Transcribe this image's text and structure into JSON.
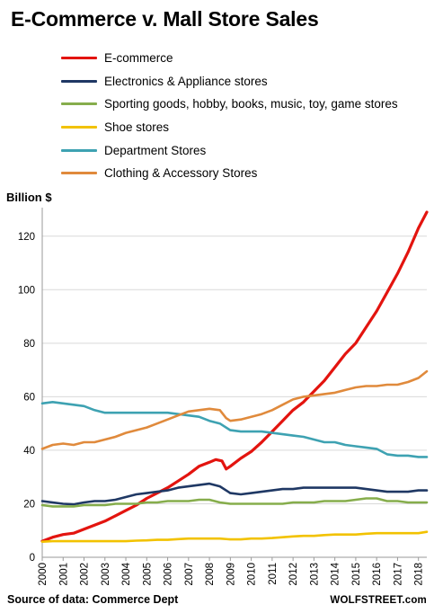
{
  "title": "E-Commerce v. Mall Store Sales",
  "source": "Source of data: Commerce Dept",
  "brand": "WOLFSTREET.com",
  "chart_data": {
    "type": "line",
    "ylabel": "Billion $",
    "xlabel": "",
    "ylim": [
      0,
      130
    ],
    "xlim": [
      2000,
      2018.4
    ],
    "yticks": [
      "0",
      "20",
      "40",
      "60",
      "80",
      "100",
      "120"
    ],
    "xticks": [
      "2000",
      "2001",
      "2002",
      "2003",
      "2004",
      "2005",
      "2006",
      "2007",
      "2008",
      "2009",
      "2010",
      "2011",
      "2012",
      "2013",
      "2014",
      "2015",
      "2016",
      "2017",
      "2018"
    ],
    "grid": "horizontal",
    "legend_position": "top-left",
    "series": [
      {
        "name": "E-commerce",
        "color": "#e3140f",
        "points": [
          [
            2000,
            6
          ],
          [
            2000.5,
            7.5
          ],
          [
            2001,
            8.5
          ],
          [
            2001.5,
            9
          ],
          [
            2002,
            10.5
          ],
          [
            2002.5,
            12
          ],
          [
            2003,
            13.5
          ],
          [
            2003.5,
            15.5
          ],
          [
            2004,
            17.5
          ],
          [
            2004.5,
            19.5
          ],
          [
            2005,
            22
          ],
          [
            2005.5,
            24
          ],
          [
            2006,
            26
          ],
          [
            2006.5,
            28.5
          ],
          [
            2007,
            31
          ],
          [
            2007.5,
            34
          ],
          [
            2008,
            35.5
          ],
          [
            2008.3,
            36.5
          ],
          [
            2008.6,
            36
          ],
          [
            2008.8,
            33
          ],
          [
            2009,
            34
          ],
          [
            2009.5,
            37
          ],
          [
            2010,
            39.5
          ],
          [
            2010.5,
            43
          ],
          [
            2011,
            47
          ],
          [
            2011.5,
            51
          ],
          [
            2012,
            55
          ],
          [
            2012.5,
            58
          ],
          [
            2013,
            62
          ],
          [
            2013.5,
            66
          ],
          [
            2014,
            71
          ],
          [
            2014.5,
            76
          ],
          [
            2015,
            80
          ],
          [
            2015.5,
            86
          ],
          [
            2016,
            92
          ],
          [
            2016.5,
            99
          ],
          [
            2017,
            106
          ],
          [
            2017.5,
            114
          ],
          [
            2018,
            123
          ],
          [
            2018.4,
            129
          ]
        ]
      },
      {
        "name": "Electronics & Appliance stores",
        "color": "#1f3864",
        "points": [
          [
            2000,
            21
          ],
          [
            2000.5,
            20.5
          ],
          [
            2001,
            20
          ],
          [
            2001.5,
            19.8
          ],
          [
            2002,
            20.5
          ],
          [
            2002.5,
            21
          ],
          [
            2003,
            21
          ],
          [
            2003.5,
            21.5
          ],
          [
            2004,
            22.5
          ],
          [
            2004.5,
            23.5
          ],
          [
            2005,
            24
          ],
          [
            2005.5,
            24.5
          ],
          [
            2006,
            25
          ],
          [
            2006.5,
            26
          ],
          [
            2007,
            26.5
          ],
          [
            2007.5,
            27
          ],
          [
            2008,
            27.5
          ],
          [
            2008.5,
            26.5
          ],
          [
            2009,
            24
          ],
          [
            2009.5,
            23.5
          ],
          [
            2010,
            24
          ],
          [
            2010.5,
            24.5
          ],
          [
            2011,
            25
          ],
          [
            2011.5,
            25.5
          ],
          [
            2012,
            25.5
          ],
          [
            2012.5,
            26
          ],
          [
            2013,
            26
          ],
          [
            2013.5,
            26
          ],
          [
            2014,
            26
          ],
          [
            2014.5,
            26
          ],
          [
            2015,
            26
          ],
          [
            2015.5,
            25.5
          ],
          [
            2016,
            25
          ],
          [
            2016.5,
            24.5
          ],
          [
            2017,
            24.5
          ],
          [
            2017.5,
            24.5
          ],
          [
            2018,
            25
          ],
          [
            2018.4,
            25
          ]
        ]
      },
      {
        "name": "Sporting goods, hobby, books, music, toy, game stores",
        "color": "#86ad4c",
        "points": [
          [
            2000,
            19.5
          ],
          [
            2000.5,
            19
          ],
          [
            2001,
            19
          ],
          [
            2001.5,
            19
          ],
          [
            2002,
            19.5
          ],
          [
            2002.5,
            19.5
          ],
          [
            2003,
            19.5
          ],
          [
            2003.5,
            20
          ],
          [
            2004,
            20
          ],
          [
            2004.5,
            20
          ],
          [
            2005,
            20.5
          ],
          [
            2005.5,
            20.5
          ],
          [
            2006,
            21
          ],
          [
            2006.5,
            21
          ],
          [
            2007,
            21
          ],
          [
            2007.5,
            21.5
          ],
          [
            2008,
            21.5
          ],
          [
            2008.5,
            20.5
          ],
          [
            2009,
            20
          ],
          [
            2009.5,
            20
          ],
          [
            2010,
            20
          ],
          [
            2010.5,
            20
          ],
          [
            2011,
            20
          ],
          [
            2011.5,
            20
          ],
          [
            2012,
            20.5
          ],
          [
            2012.5,
            20.5
          ],
          [
            2013,
            20.5
          ],
          [
            2013.5,
            21
          ],
          [
            2014,
            21
          ],
          [
            2014.5,
            21
          ],
          [
            2015,
            21.5
          ],
          [
            2015.5,
            22
          ],
          [
            2016,
            22
          ],
          [
            2016.5,
            21
          ],
          [
            2017,
            21
          ],
          [
            2017.5,
            20.5
          ],
          [
            2018,
            20.5
          ],
          [
            2018.4,
            20.5
          ]
        ]
      },
      {
        "name": "Shoe stores",
        "color": "#f2c200",
        "points": [
          [
            2000,
            5.8
          ],
          [
            2000.5,
            6
          ],
          [
            2001,
            6
          ],
          [
            2001.5,
            6
          ],
          [
            2002,
            6
          ],
          [
            2002.5,
            6
          ],
          [
            2003,
            6
          ],
          [
            2003.5,
            6
          ],
          [
            2004,
            6
          ],
          [
            2004.5,
            6.2
          ],
          [
            2005,
            6.3
          ],
          [
            2005.5,
            6.5
          ],
          [
            2006,
            6.5
          ],
          [
            2006.5,
            6.8
          ],
          [
            2007,
            7
          ],
          [
            2007.5,
            7
          ],
          [
            2008,
            7
          ],
          [
            2008.5,
            7
          ],
          [
            2009,
            6.7
          ],
          [
            2009.5,
            6.7
          ],
          [
            2010,
            7
          ],
          [
            2010.5,
            7
          ],
          [
            2011,
            7.2
          ],
          [
            2011.5,
            7.5
          ],
          [
            2012,
            7.8
          ],
          [
            2012.5,
            8
          ],
          [
            2013,
            8
          ],
          [
            2013.5,
            8.3
          ],
          [
            2014,
            8.5
          ],
          [
            2014.5,
            8.5
          ],
          [
            2015,
            8.5
          ],
          [
            2015.5,
            8.8
          ],
          [
            2016,
            9
          ],
          [
            2016.5,
            9
          ],
          [
            2017,
            9
          ],
          [
            2017.5,
            9
          ],
          [
            2018,
            9
          ],
          [
            2018.4,
            9.5
          ]
        ]
      },
      {
        "name": "Department Stores",
        "color": "#3ea2b2",
        "points": [
          [
            2000,
            57.5
          ],
          [
            2000.5,
            58
          ],
          [
            2001,
            57.5
          ],
          [
            2001.5,
            57
          ],
          [
            2002,
            56.5
          ],
          [
            2002.5,
            55
          ],
          [
            2003,
            54
          ],
          [
            2003.5,
            54
          ],
          [
            2004,
            54
          ],
          [
            2004.5,
            54
          ],
          [
            2005,
            54
          ],
          [
            2005.5,
            54
          ],
          [
            2006,
            54
          ],
          [
            2006.5,
            53.5
          ],
          [
            2007,
            53
          ],
          [
            2007.5,
            52.5
          ],
          [
            2008,
            51
          ],
          [
            2008.5,
            50
          ],
          [
            2009,
            47.5
          ],
          [
            2009.5,
            47
          ],
          [
            2010,
            47
          ],
          [
            2010.5,
            47
          ],
          [
            2011,
            46.5
          ],
          [
            2011.5,
            46
          ],
          [
            2012,
            45.5
          ],
          [
            2012.5,
            45
          ],
          [
            2013,
            44
          ],
          [
            2013.5,
            43
          ],
          [
            2014,
            43
          ],
          [
            2014.5,
            42
          ],
          [
            2015,
            41.5
          ],
          [
            2015.5,
            41
          ],
          [
            2016,
            40.5
          ],
          [
            2016.5,
            38.5
          ],
          [
            2017,
            38
          ],
          [
            2017.5,
            38
          ],
          [
            2018,
            37.5
          ],
          [
            2018.4,
            37.5
          ]
        ]
      },
      {
        "name": "Clothing & Accessory Stores",
        "color": "#e08a3c",
        "points": [
          [
            2000,
            40.5
          ],
          [
            2000.5,
            42
          ],
          [
            2001,
            42.5
          ],
          [
            2001.5,
            42
          ],
          [
            2002,
            43
          ],
          [
            2002.5,
            43
          ],
          [
            2003,
            44
          ],
          [
            2003.5,
            45
          ],
          [
            2004,
            46.5
          ],
          [
            2004.5,
            47.5
          ],
          [
            2005,
            48.5
          ],
          [
            2005.5,
            50
          ],
          [
            2006,
            51.5
          ],
          [
            2006.5,
            53
          ],
          [
            2007,
            54.5
          ],
          [
            2007.5,
            55
          ],
          [
            2008,
            55.5
          ],
          [
            2008.5,
            55
          ],
          [
            2008.8,
            52
          ],
          [
            2009,
            51
          ],
          [
            2009.5,
            51.5
          ],
          [
            2010,
            52.5
          ],
          [
            2010.5,
            53.5
          ],
          [
            2011,
            55
          ],
          [
            2011.5,
            57
          ],
          [
            2012,
            59
          ],
          [
            2012.5,
            60
          ],
          [
            2013,
            60.5
          ],
          [
            2013.5,
            61
          ],
          [
            2014,
            61.5
          ],
          [
            2014.5,
            62.5
          ],
          [
            2015,
            63.5
          ],
          [
            2015.5,
            64
          ],
          [
            2016,
            64
          ],
          [
            2016.5,
            64.5
          ],
          [
            2017,
            64.5
          ],
          [
            2017.5,
            65.5
          ],
          [
            2018,
            67
          ],
          [
            2018.4,
            69.5
          ]
        ]
      }
    ]
  }
}
